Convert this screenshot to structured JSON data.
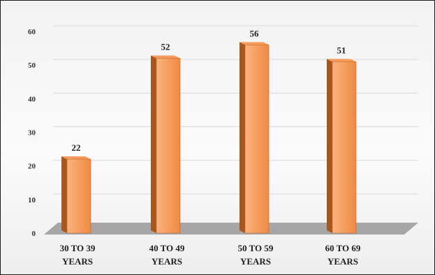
{
  "chart_data": {
    "type": "bar",
    "title": "",
    "xlabel": "",
    "ylabel": "",
    "categories": [
      [
        "30 TO 39",
        "YEARS"
      ],
      [
        "40 TO 49",
        "YEARS"
      ],
      [
        "50 TO 59",
        "YEARS"
      ],
      [
        "60 TO 69",
        "YEARS"
      ]
    ],
    "values": [
      22,
      52,
      56,
      51
    ],
    "data_labels": [
      "22",
      "52",
      "56",
      "51"
    ],
    "ylim": [
      0,
      60
    ],
    "yticks": [
      0,
      10,
      20,
      30,
      40,
      50,
      60
    ],
    "grid": true,
    "legend": "none",
    "style": "3d-column",
    "colors": {
      "bar_front_light": "#fbb27e",
      "bar_front_dark": "#ee8a44",
      "bar_side": "#a9561c",
      "bar_top": "#f59b5c",
      "floor": "#a6a6a6",
      "gridline": "#d9d9d9"
    }
  }
}
